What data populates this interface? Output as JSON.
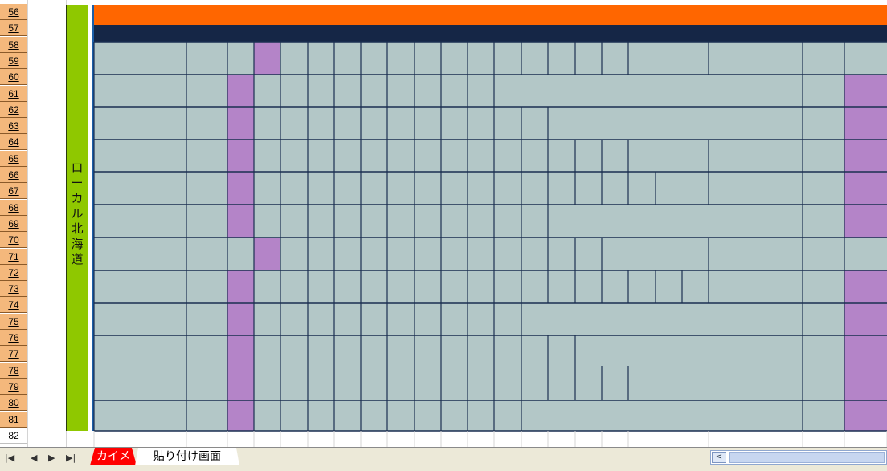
{
  "rows": [
    "56",
    "57",
    "58",
    "59",
    "60",
    "61",
    "62",
    "63",
    "64",
    "65",
    "66",
    "67",
    "68",
    "69",
    "70",
    "71",
    "72",
    "73",
    "74",
    "75",
    "76",
    "77",
    "78",
    "79",
    "80",
    "81",
    "82"
  ],
  "side_label": [
    "ロ",
    "ー",
    "カ",
    "ル",
    "北",
    "海",
    "道"
  ],
  "tabs": [
    {
      "label": "カイメ",
      "color": "#ff0000"
    },
    {
      "label": "貼り付け画面",
      "color": "#ffffff"
    }
  ],
  "navigation": [
    "first-sheet-icon",
    "previous-sheet-icon",
    "next-sheet-icon",
    "last-sheet-icon"
  ],
  "scroll_left_icon": "chevron-left-icon",
  "colors": {
    "orange": "#ff6600",
    "navy": "#152646",
    "cell": "#b3c7c7",
    "purple": "#b484c8",
    "grid": "#1a2e50",
    "green": "#8fc800",
    "row_header": "#f4b87c"
  }
}
